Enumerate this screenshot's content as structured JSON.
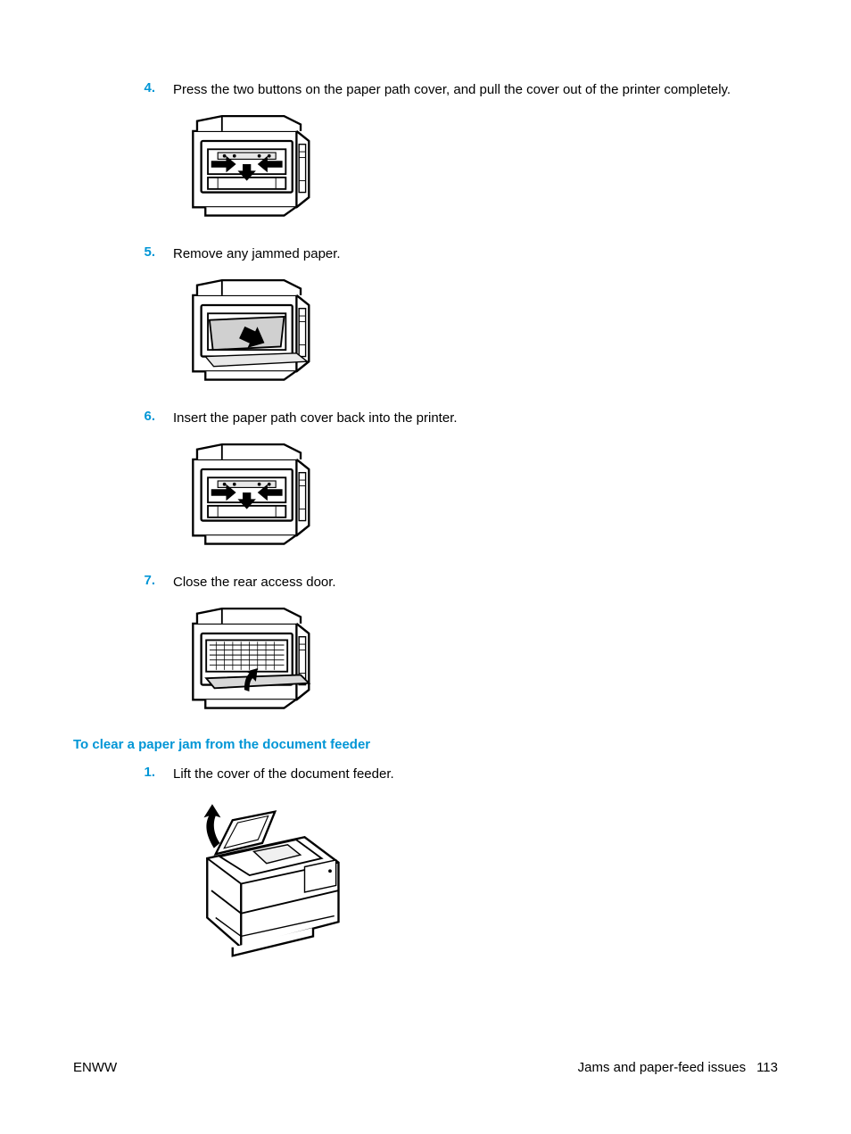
{
  "colors": {
    "accent": "#0096d6",
    "text": "#000000",
    "background": "#ffffff",
    "figure_stroke": "#000000",
    "figure_fill": "#ffffff",
    "paper_fill": "#d0d0d0"
  },
  "typography": {
    "body_fontsize_pt": 11,
    "heading_fontsize_pt": 11,
    "font_family": "sans-serif",
    "step_number_weight": "bold",
    "heading_weight": "bold"
  },
  "steps_a": [
    {
      "num": "4.",
      "text": "Press the two buttons on the paper path cover, and pull the cover out of the printer completely.",
      "figure": "printer_buttons"
    },
    {
      "num": "5.",
      "text": "Remove any jammed paper.",
      "figure": "printer_paper"
    },
    {
      "num": "6.",
      "text": "Insert the paper path cover back into the printer.",
      "figure": "printer_buttons"
    },
    {
      "num": "7.",
      "text": "Close the rear access door.",
      "figure": "printer_close"
    }
  ],
  "section_heading": "To clear a paper jam from the document feeder",
  "steps_b": [
    {
      "num": "1.",
      "text": "Lift the cover of the document feeder.",
      "figure": "feeder_lift"
    }
  ],
  "footer": {
    "left": "ENWW",
    "right_label": "Jams and paper-feed issues",
    "page_number": "113"
  }
}
